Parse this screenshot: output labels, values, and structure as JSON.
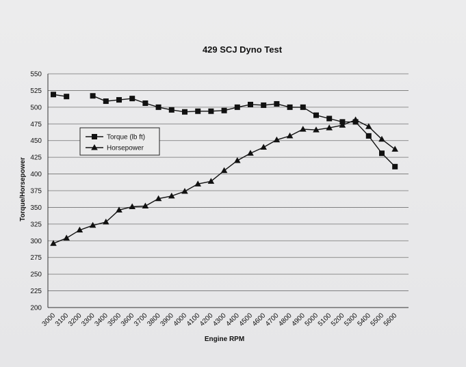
{
  "chart_data": {
    "type": "line",
    "title": "429 SCJ Dyno Test",
    "xlabel": "Engine RPM",
    "ylabel": "Torque/Horsepower",
    "ylim": [
      200,
      550
    ],
    "yticks": [
      200,
      225,
      250,
      275,
      300,
      325,
      350,
      375,
      400,
      425,
      450,
      475,
      500,
      525,
      550
    ],
    "categories": [
      "3000",
      "3100",
      "3200",
      "3300",
      "3400",
      "3500",
      "3600",
      "3700",
      "3800",
      "3900",
      "4000",
      "4100",
      "4200",
      "4300",
      "4400",
      "4500",
      "4600",
      "4700",
      "4800",
      "4900",
      "5000",
      "5100",
      "5200",
      "5300",
      "5400",
      "5500",
      "5600"
    ],
    "grid": true,
    "legend_position": "left-middle",
    "series": [
      {
        "name": "Torque (lb ft)",
        "marker": "square",
        "color": "#111111",
        "values": [
          519,
          516,
          null,
          517,
          509,
          511,
          513,
          506,
          500,
          496,
          493,
          494,
          494,
          495,
          500,
          504,
          503,
          505,
          500,
          500,
          488,
          483,
          478,
          478,
          457,
          431,
          411
        ]
      },
      {
        "name": "Horsepower",
        "marker": "triangle",
        "color": "#111111",
        "values": [
          296,
          304,
          316,
          323,
          328,
          346,
          351,
          352,
          363,
          367,
          374,
          385,
          389,
          405,
          420,
          431,
          440,
          451,
          457,
          467,
          466,
          469,
          473,
          481,
          471,
          452,
          437
        ]
      }
    ]
  }
}
